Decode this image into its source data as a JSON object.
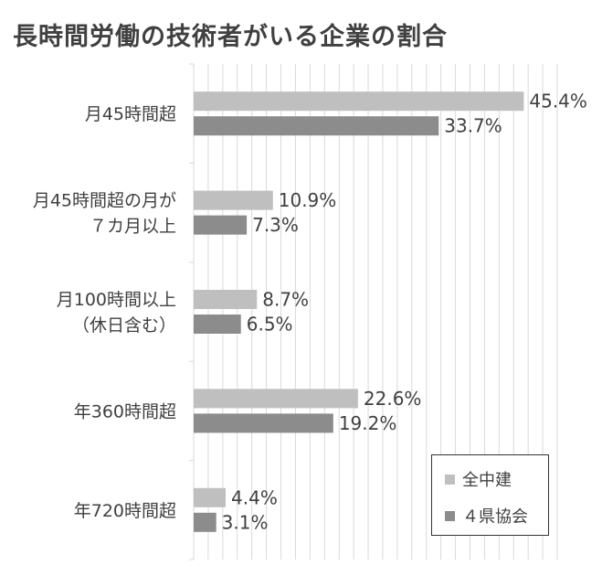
{
  "title": "長時間労働の技術者がいる企業の割合",
  "chart_data": {
    "type": "bar",
    "orientation": "horizontal",
    "categories": [
      [
        "月45時間超"
      ],
      [
        "月45時間超の月が",
        "７カ月以上"
      ],
      [
        "月100時間以上",
        "（休日含む）"
      ],
      [
        "年360時間超"
      ],
      [
        "年720時間超"
      ]
    ],
    "series": [
      {
        "name": "全中建",
        "color": "#bfbfbf",
        "values": [
          45.4,
          10.9,
          8.7,
          22.6,
          4.4
        ]
      },
      {
        "name": "４県協会",
        "color": "#8c8c8c",
        "values": [
          33.7,
          7.3,
          6.5,
          19.2,
          3.1
        ]
      }
    ],
    "value_labels": [
      [
        "45.4%",
        "10.9%",
        "8.7%",
        "22.6%",
        "4.4%"
      ],
      [
        "33.7%",
        "7.3%",
        "6.5%",
        "19.2%",
        "3.1%"
      ]
    ],
    "xlim": [
      0,
      50
    ],
    "grid": true,
    "legend_position": "bottom-right"
  }
}
